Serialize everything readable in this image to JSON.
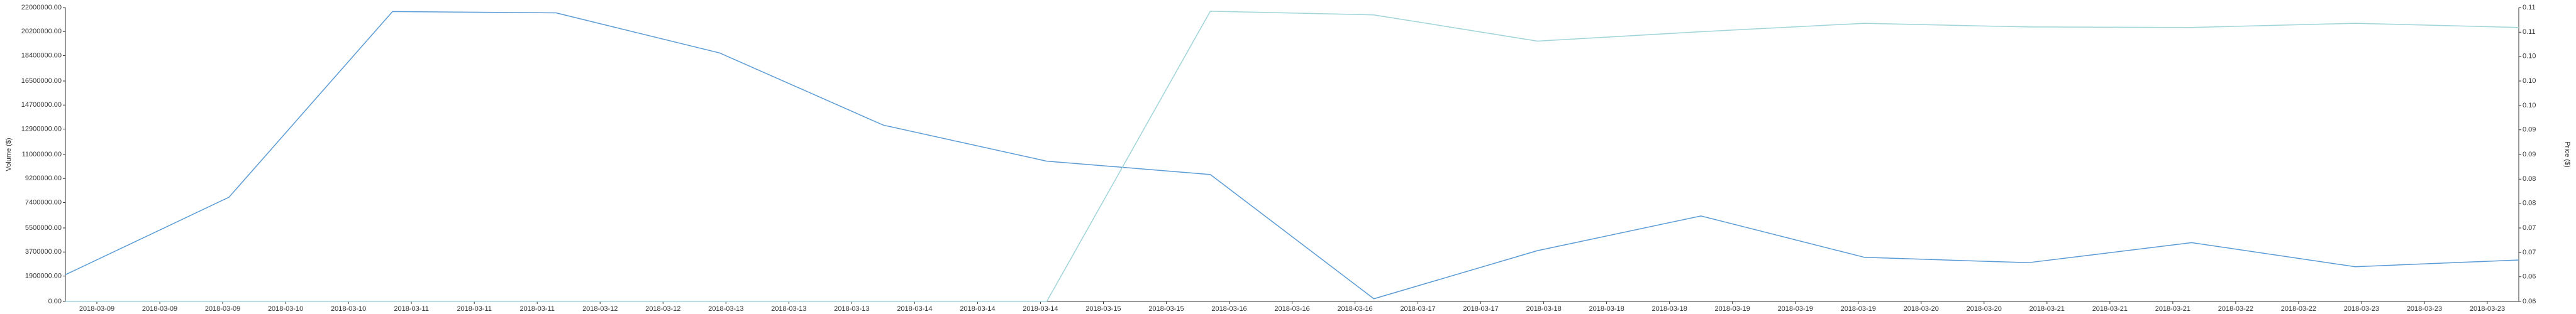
{
  "chart_data": {
    "type": "line",
    "y_label": "Volume ($)",
    "y2_label": "Price ($)",
    "xlim": [
      -0.5,
      38.5
    ],
    "xticks": [
      {
        "value": 0,
        "label": "2018-03-09"
      },
      {
        "value": 1,
        "label": "2018-03-09"
      },
      {
        "value": 2,
        "label": "2018-03-09"
      },
      {
        "value": 3,
        "label": "2018-03-10"
      },
      {
        "value": 4,
        "label": "2018-03-10"
      },
      {
        "value": 5,
        "label": "2018-03-11"
      },
      {
        "value": 6,
        "label": "2018-03-11"
      },
      {
        "value": 7,
        "label": "2018-03-11"
      },
      {
        "value": 8,
        "label": "2018-03-12"
      },
      {
        "value": 9,
        "label": "2018-03-12"
      },
      {
        "value": 10,
        "label": "2018-03-13"
      },
      {
        "value": 11,
        "label": "2018-03-13"
      },
      {
        "value": 12,
        "label": "2018-03-13"
      },
      {
        "value": 13,
        "label": "2018-03-14"
      },
      {
        "value": 14,
        "label": "2018-03-14"
      },
      {
        "value": 15,
        "label": "2018-03-14"
      },
      {
        "value": 16,
        "label": "2018-03-15"
      },
      {
        "value": 17,
        "label": "2018-03-15"
      },
      {
        "value": 18,
        "label": "2018-03-16"
      },
      {
        "value": 19,
        "label": "2018-03-16"
      },
      {
        "value": 20,
        "label": "2018-03-16"
      },
      {
        "value": 21,
        "label": "2018-03-17"
      },
      {
        "value": 22,
        "label": "2018-03-17"
      },
      {
        "value": 23,
        "label": "2018-03-18"
      },
      {
        "value": 24,
        "label": "2018-03-18"
      },
      {
        "value": 25,
        "label": "2018-03-18"
      },
      {
        "value": 26,
        "label": "2018-03-19"
      },
      {
        "value": 27,
        "label": "2018-03-19"
      },
      {
        "value": 28,
        "label": "2018-03-19"
      },
      {
        "value": 29,
        "label": "2018-03-20"
      },
      {
        "value": 30,
        "label": "2018-03-20"
      },
      {
        "value": 31,
        "label": "2018-03-21"
      },
      {
        "value": 32,
        "label": "2018-03-21"
      },
      {
        "value": 33,
        "label": "2018-03-21"
      },
      {
        "value": 34,
        "label": "2018-03-22"
      },
      {
        "value": 35,
        "label": "2018-03-22"
      },
      {
        "value": 36,
        "label": "2018-03-23"
      },
      {
        "value": 37,
        "label": "2018-03-23"
      },
      {
        "value": 38,
        "label": "2018-03-23"
      }
    ],
    "ylim": [
      0,
      22000000
    ],
    "yticks": [
      {
        "value": 0,
        "label": "0.00"
      },
      {
        "value": 1900000,
        "label": "1900000.00"
      },
      {
        "value": 3700000,
        "label": "3700000.00"
      },
      {
        "value": 5500000,
        "label": "5500000.00"
      },
      {
        "value": 7400000,
        "label": "7400000.00"
      },
      {
        "value": 9200000,
        "label": "9200000.00"
      },
      {
        "value": 11000000,
        "label": "11000000.00"
      },
      {
        "value": 12900000,
        "label": "12900000.00"
      },
      {
        "value": 14700000,
        "label": "14700000.00"
      },
      {
        "value": 16500000,
        "label": "16500000.00"
      },
      {
        "value": 18400000,
        "label": "18400000.00"
      },
      {
        "value": 20200000,
        "label": "20200000.00"
      },
      {
        "value": 22000000,
        "label": "22000000.00"
      }
    ],
    "y2lim": [
      0.058,
      0.114
    ],
    "y2ticks": [
      {
        "value": 0.058,
        "label": "0.06"
      },
      {
        "value": 0.0627,
        "label": "0.06"
      },
      {
        "value": 0.0673,
        "label": "0.07"
      },
      {
        "value": 0.072,
        "label": "0.07"
      },
      {
        "value": 0.0767,
        "label": "0.08"
      },
      {
        "value": 0.0813,
        "label": "0.08"
      },
      {
        "value": 0.086,
        "label": "0.09"
      },
      {
        "value": 0.0907,
        "label": "0.09"
      },
      {
        "value": 0.0953,
        "label": "0.10"
      },
      {
        "value": 0.1,
        "label": "0.10"
      },
      {
        "value": 0.1047,
        "label": "0.10"
      },
      {
        "value": 0.1093,
        "label": "0.11"
      },
      {
        "value": 0.114,
        "label": "0.11"
      }
    ],
    "series": [
      {
        "color": "#5b9bd5",
        "axis": "y",
        "x": [
          -0.5,
          2.1,
          4.7,
          7.3,
          9.9,
          12.5,
          15.1,
          17.7,
          20.3,
          22.9,
          25.5,
          28.1,
          30.7,
          33.3,
          35.9,
          38.5
        ],
        "values": [
          2000000,
          7800000,
          21700000,
          21600000,
          18600000,
          13200000,
          10500000,
          9500000,
          200000,
          3800000,
          6400000,
          3300000,
          2900000,
          4400000,
          2600000,
          3100000
        ]
      },
      {
        "color": "#9fd4d8",
        "axis": "y2",
        "x": [
          -0.5,
          2.1,
          4.7,
          7.3,
          9.9,
          12.5,
          15.1,
          17.7,
          20.3,
          22.9,
          25.5,
          28.1,
          30.7,
          33.3,
          35.9,
          38.5
        ],
        "values": [
          0.058,
          0.058,
          0.058,
          0.058,
          0.058,
          0.058,
          0.058,
          0.1133,
          0.1126,
          0.1076,
          0.1094,
          0.111,
          0.1103,
          0.1102,
          0.111,
          0.1102
        ]
      }
    ]
  }
}
